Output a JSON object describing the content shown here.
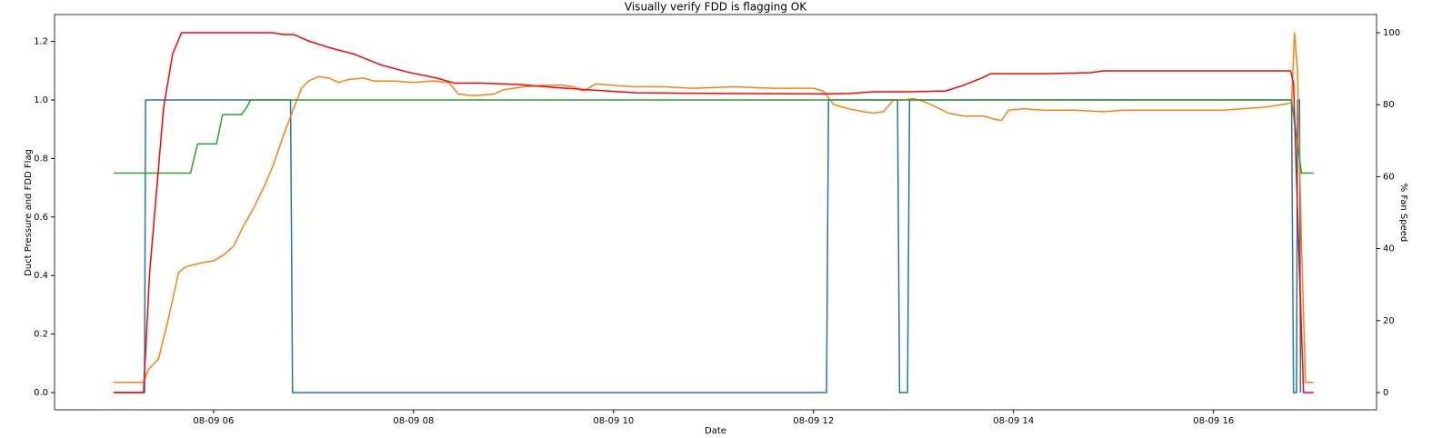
{
  "chart_data": {
    "type": "line",
    "title": "Visually verify FDD is flagging OK",
    "x_label": "Date",
    "y_label": "Duct Pressure and FDD Flag",
    "y2_label": "% Fan Speed",
    "xlim": [
      4.41,
      17.63
    ],
    "xticks": [
      {
        "value": 6,
        "label": "08-09 06"
      },
      {
        "value": 8,
        "label": "08-09 08"
      },
      {
        "value": 10,
        "label": "08-09 10"
      },
      {
        "value": 12,
        "label": "08-09 12"
      },
      {
        "value": 14,
        "label": "08-09 14"
      },
      {
        "value": 16,
        "label": "08-09 16"
      }
    ],
    "ylim": [
      -0.059,
      1.292
    ],
    "yticks": [
      {
        "value": 0,
        "label": "0.0"
      },
      0.2,
      0.4,
      0.6,
      0.8,
      {
        "value": 1,
        "label": "1.0"
      },
      1.2
    ],
    "y2lim": [
      -4.8,
      105.05
    ],
    "y2ticks": [
      0,
      20,
      40,
      60,
      80,
      100
    ],
    "series": [
      {
        "color": "#1f77b4",
        "x": [
          5.0,
          5.31,
          5.32,
          6.77,
          6.79,
          12.13,
          12.15,
          12.84,
          12.86,
          12.94,
          12.96,
          16.78,
          16.8,
          16.83,
          16.84,
          16.86,
          16.87
        ],
        "values": [
          0,
          0,
          1,
          1,
          0,
          0,
          1,
          1,
          0,
          0,
          1,
          1,
          0,
          0,
          1,
          1,
          0
        ]
      },
      {
        "color": "#ff7f0e",
        "x": [
          5.0,
          5.3,
          5.35,
          5.45,
          5.55,
          5.65,
          5.72,
          5.9,
          6.0,
          6.1,
          6.2,
          6.3,
          6.4,
          6.5,
          6.6,
          6.7,
          6.8,
          6.88,
          6.95,
          7.05,
          7.15,
          7.25,
          7.35,
          7.5,
          7.6,
          7.8,
          8.0,
          8.2,
          8.35,
          8.45,
          8.6,
          8.8,
          8.9,
          9.1,
          9.3,
          9.5,
          9.6,
          9.7,
          9.82,
          10.0,
          10.2,
          10.5,
          10.8,
          11.2,
          11.6,
          12.0,
          12.1,
          12.2,
          12.35,
          12.5,
          12.6,
          12.7,
          12.8,
          12.9,
          13.0,
          13.1,
          13.2,
          13.35,
          13.5,
          13.7,
          13.8,
          13.88,
          13.95,
          14.1,
          14.3,
          14.6,
          14.9,
          15.1,
          15.4,
          15.8,
          16.1,
          16.3,
          16.5,
          16.7,
          16.78,
          16.81,
          16.84,
          16.88,
          16.92,
          17.0
        ],
        "values": [
          0.035,
          0.035,
          0.08,
          0.115,
          0.255,
          0.41,
          0.43,
          0.445,
          0.45,
          0.47,
          0.5,
          0.57,
          0.63,
          0.7,
          0.78,
          0.88,
          0.97,
          1.04,
          1.065,
          1.08,
          1.075,
          1.06,
          1.07,
          1.075,
          1.065,
          1.065,
          1.06,
          1.065,
          1.06,
          1.02,
          1.015,
          1.02,
          1.035,
          1.045,
          1.05,
          1.05,
          1.045,
          1.03,
          1.055,
          1.05,
          1.045,
          1.045,
          1.04,
          1.045,
          1.04,
          1.04,
          1.03,
          0.985,
          0.97,
          0.96,
          0.955,
          0.96,
          1.0,
          1.0,
          1.005,
          0.995,
          0.98,
          0.955,
          0.945,
          0.945,
          0.935,
          0.93,
          0.965,
          0.97,
          0.965,
          0.965,
          0.96,
          0.965,
          0.965,
          0.965,
          0.965,
          0.97,
          0.975,
          0.985,
          0.99,
          1.23,
          1.1,
          0.5,
          0.035,
          0.035
        ]
      },
      {
        "color": "#2ca02c",
        "x": [
          5.0,
          5.77,
          5.84,
          6.03,
          6.09,
          6.28,
          6.34,
          6.37,
          16.78,
          16.88,
          17.0
        ],
        "values": [
          0.75,
          0.75,
          0.85,
          0.85,
          0.95,
          0.95,
          0.98,
          1.0,
          1.0,
          0.75,
          0.75
        ]
      },
      {
        "color": "#ff0000",
        "axis": "y2",
        "x": [
          5.0,
          5.3,
          5.36,
          5.5,
          5.59,
          5.68,
          6.59,
          6.7,
          6.8,
          6.95,
          7.14,
          7.41,
          7.68,
          7.95,
          8.23,
          8.41,
          8.68,
          9.05,
          9.41,
          9.77,
          10.23,
          11.14,
          12.05,
          12.36,
          12.6,
          12.95,
          13.32,
          13.5,
          13.68,
          13.77,
          14.32,
          14.77,
          14.9,
          15.68,
          16.77,
          16.8,
          16.86,
          16.9,
          17.0
        ],
        "values": [
          0,
          0,
          33,
          79,
          94,
          100,
          100,
          99.5,
          99.5,
          97.7,
          96,
          94,
          91,
          89,
          87.4,
          86,
          86,
          85.6,
          84.8,
          84.1,
          83.3,
          83.1,
          83,
          83.1,
          83.6,
          83.6,
          83.8,
          85.4,
          87.4,
          88.6,
          88.6,
          88.9,
          89.4,
          89.4,
          89.4,
          86,
          33,
          0,
          0
        ]
      }
    ]
  }
}
